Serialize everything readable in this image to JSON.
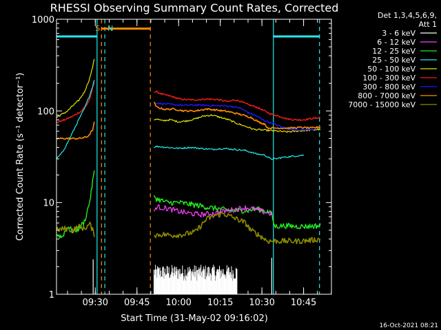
{
  "chart_data": {
    "type": "line",
    "title": "RHESSI Observing Summary Count Rates, Corrected",
    "xlabel": "Start Time (31-May-02 09:16:02)",
    "ylabel": "Corrected Count Rate (s⁻¹ detector⁻¹)",
    "yscale": "log",
    "ylim": [
      1,
      1000
    ],
    "xlim_minutes": [
      0,
      99
    ],
    "y_ticks": [
      "1",
      "10",
      "100",
      "1000"
    ],
    "x_ticks": [
      {
        "label": "09:30",
        "minute": 13.97
      },
      {
        "label": "09:45",
        "minute": 28.97
      },
      {
        "label": "10:00",
        "minute": 43.97
      },
      {
        "label": "10:15",
        "minute": 58.97
      },
      {
        "label": "10:30",
        "minute": 73.97
      },
      {
        "label": "10:45",
        "minute": 88.97
      }
    ],
    "legend": {
      "placement": "right",
      "header": [
        "Det 1,3,4,5,6,9,",
        "Att 1"
      ],
      "entries": [
        {
          "label": "3 - 6 keV",
          "color": "#ffffff"
        },
        {
          "label": "6 - 12 keV",
          "color": "#ff40ff"
        },
        {
          "label": "12 - 25 keV",
          "color": "#22ee22"
        },
        {
          "label": "25 - 50 keV",
          "color": "#22eeee"
        },
        {
          "label": "50 - 100 keV",
          "color": "#e6e600"
        },
        {
          "label": "100 - 300 keV",
          "color": "#ff1a1a"
        },
        {
          "label": "300 - 800 keV",
          "color": "#1a1aff"
        },
        {
          "label": "800 - 7000 keV",
          "color": "#ff8c00"
        },
        {
          "label": "7000 - 15000 keV",
          "color": "#8b8b00"
        }
      ]
    },
    "annotations": [
      {
        "label": "S",
        "color": "#ff8c00",
        "minute": 16.2
      },
      {
        "label": "N",
        "color": "#22eeee",
        "minute": 17.4
      }
    ],
    "timestamp": "16-Oct-2021 08:21",
    "series": [
      {
        "color": "#ff1a1a",
        "width": 1.4,
        "x": [
          0,
          3,
          6,
          9,
          11,
          12,
          12.5,
          13,
          13.6,
          35.1,
          36,
          38,
          41,
          44,
          46,
          50,
          54,
          58,
          62,
          64,
          66,
          69,
          72,
          74,
          77,
          80,
          83,
          86,
          89,
          91,
          93,
          95
        ],
        "y": [
          75,
          80,
          88,
          100,
          118,
          135,
          155,
          178,
          210,
          160,
          162,
          152,
          145,
          136,
          133,
          132,
          135,
          133,
          126,
          132,
          128,
          117,
          110,
          103,
          93,
          88,
          82,
          80,
          80,
          82,
          83,
          85
        ]
      },
      {
        "color": "#e6e600",
        "width": 1.2,
        "x": [
          0,
          2,
          4,
          6,
          8,
          10,
          11,
          12,
          13,
          13.6,
          35.1,
          36,
          38,
          41,
          44,
          47,
          50,
          53,
          56,
          59,
          62,
          65,
          68,
          71,
          74,
          77,
          80,
          83,
          86,
          89,
          92,
          95
        ],
        "y": [
          85,
          92,
          100,
          115,
          130,
          160,
          190,
          230,
          300,
          370,
          80,
          82,
          78,
          80,
          76,
          78,
          82,
          88,
          90,
          85,
          80,
          73,
          68,
          63,
          62,
          61,
          60,
          59,
          60,
          61,
          62,
          63
        ]
      },
      {
        "color": "#22eeee",
        "width": 1.2,
        "x": [
          0,
          2,
          4,
          6,
          8,
          10,
          11,
          12,
          13,
          13.6,
          35.1,
          36,
          40,
          44,
          48,
          52,
          56,
          60,
          64,
          68,
          72,
          75,
          77,
          79,
          81,
          85,
          89,
          95
        ],
        "y": [
          30,
          35,
          45,
          60,
          80,
          105,
          125,
          150,
          185,
          220,
          40,
          41,
          40,
          39,
          40,
          39,
          38,
          39,
          38,
          37,
          34,
          33,
          30,
          30,
          31,
          32,
          33,
          35
        ]
      },
      {
        "color": "#1a1aff",
        "width": 1.4,
        "x": [
          35.1,
          36,
          38,
          42,
          46,
          50,
          54,
          58,
          62,
          66,
          69,
          72,
          75,
          78,
          81,
          84,
          88,
          92,
          95
        ],
        "y": [
          118,
          122,
          120,
          117,
          115,
          116,
          115,
          114,
          113,
          108,
          96,
          88,
          78,
          73,
          67,
          63,
          62,
          63,
          66
        ]
      },
      {
        "color": "#ff8c00",
        "width": 1.6,
        "x": [
          0,
          4,
          8,
          11,
          12,
          13,
          13.6,
          35.1,
          36,
          39,
          42,
          46,
          50,
          54,
          58,
          62,
          66,
          70,
          73,
          75,
          76,
          77,
          80,
          84,
          88,
          92,
          95
        ],
        "y": [
          50,
          50,
          50,
          52,
          56,
          62,
          75,
          125,
          110,
          104,
          105,
          100,
          100,
          105,
          102,
          98,
          92,
          85,
          75,
          72,
          65,
          65,
          65,
          65,
          66,
          65,
          67
        ]
      },
      {
        "color": "#22ee22",
        "width": 1.4,
        "x": [
          0,
          2,
          4,
          6,
          8,
          10,
          11,
          12,
          12.5,
          13,
          13.6,
          35.1,
          36,
          40,
          44,
          48,
          52,
          55,
          58,
          62,
          66,
          69,
          72,
          74,
          76,
          77.5,
          78.5,
          82,
          86,
          90,
          95
        ],
        "y": [
          4.5,
          4.2,
          5.6,
          4.8,
          5.2,
          6.2,
          7.8,
          10.5,
          13,
          17,
          22,
          12,
          11,
          10,
          10,
          9.6,
          9.2,
          8.8,
          8.6,
          8.2,
          8.2,
          8.2,
          8.6,
          8.2,
          8,
          7.5,
          5.5,
          5.6,
          5.5,
          5.5,
          5.6
        ]
      },
      {
        "color": "#ff40ff",
        "width": 1.2,
        "x": [
          35.1,
          36,
          40,
          44,
          48,
          52,
          56,
          60,
          64,
          68,
          72,
          74,
          76,
          77.5
        ],
        "y": [
          8,
          9,
          8.6,
          8,
          7.6,
          7.4,
          7.6,
          8,
          8.4,
          8.8,
          8.4,
          8,
          7.8,
          7.5
        ]
      },
      {
        "color": "#8b8b00",
        "width": 1.6,
        "x": [
          0,
          3,
          6,
          8,
          10,
          12,
          13,
          13.6,
          35.1,
          38,
          42,
          46,
          50,
          52,
          54,
          57,
          60,
          63,
          66,
          68,
          70,
          72,
          74,
          76,
          78,
          80,
          84,
          88,
          92,
          95
        ],
        "y": [
          5,
          5.2,
          5,
          5.5,
          5.2,
          5.8,
          5,
          4.5,
          4.4,
          4.5,
          4.4,
          4.5,
          4.8,
          5.6,
          6.6,
          7.2,
          7.6,
          7,
          6.4,
          6,
          5,
          4.6,
          4.2,
          3.8,
          3.8,
          3.8,
          3.8,
          3.8,
          3.9,
          4
        ]
      }
    ],
    "white_noise_interval_minutes": [
      35.1,
      65
    ],
    "data_gaps_minutes": [
      [
        13.6,
        35.1
      ]
    ],
    "vertical_markers": [
      {
        "minute": 14.6,
        "color": "#22eeee",
        "style": "solid"
      },
      {
        "minute": 16.2,
        "color": "#ff8c00",
        "style": "dashed"
      },
      {
        "minute": 17.4,
        "color": "#22eeee",
        "style": "dashed"
      },
      {
        "minute": 33.8,
        "color": "#ff8c00",
        "style": "dashed"
      },
      {
        "minute": 78.1,
        "color": "#22eeee",
        "style": "solid"
      },
      {
        "minute": 94.7,
        "color": "#22eeee",
        "style": "dashed"
      }
    ],
    "horizontal_bars": [
      {
        "from": 0,
        "to": 14.6,
        "value": 650,
        "color": "#22eeee"
      },
      {
        "from": 16.2,
        "to": 33.8,
        "value": 790,
        "color": "#ff8c00"
      },
      {
        "from": 78.1,
        "to": 94.7,
        "value": 650,
        "color": "#22eeee"
      }
    ]
  }
}
